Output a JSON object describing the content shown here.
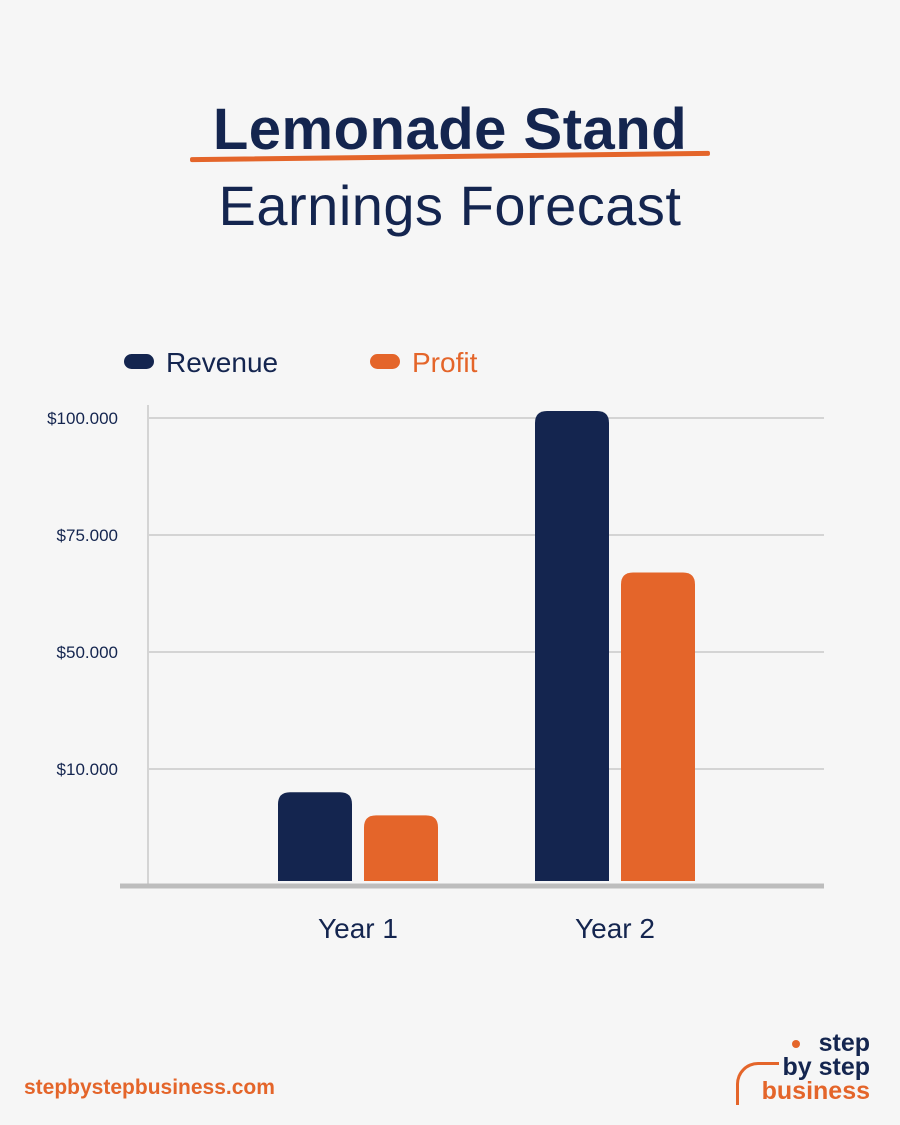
{
  "title": {
    "line1": "Lemonade Stand",
    "line2": "Earnings Forecast"
  },
  "colors": {
    "revenue": "#14254f",
    "profit": "#e4652a",
    "background": "#f6f6f6",
    "grid": "#d4d4d4",
    "axis": "#bdbdbd"
  },
  "chart_data": {
    "type": "bar",
    "categories": [
      "Year 1",
      "Year 2"
    ],
    "series": [
      {
        "name": "Revenue",
        "values": [
          8000,
          101500
        ]
      },
      {
        "name": "Profit",
        "values": [
          6000,
          67000
        ]
      }
    ],
    "yticks": [
      "$10.000",
      "$50.000",
      "$75.000",
      "$100.000"
    ],
    "legend_position": "top-left",
    "grid": true
  },
  "footer": {
    "url": "stepbystepbusiness.com"
  },
  "logo": {
    "line1": "step",
    "line2": "by step",
    "line3": "business"
  }
}
